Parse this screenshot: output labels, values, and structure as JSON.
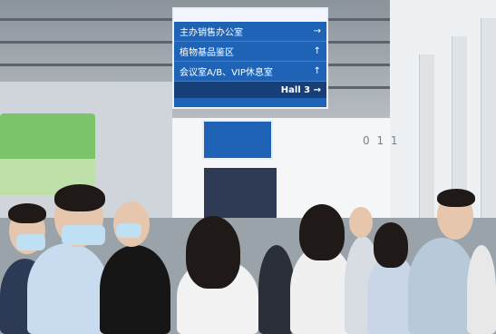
{
  "sign": {
    "header_left": "",
    "header_right": "",
    "rows": [
      {
        "text": "主办销售办公室",
        "arrow": "→"
      },
      {
        "text": "植物基品鉴区",
        "arrow": "↑"
      },
      {
        "text": "会议室A/B、VIP休息室",
        "arrow": "↑"
      }
    ],
    "footer_left": "",
    "footer_right": "Hall 3 →"
  },
  "panel_text": "0 1 1",
  "colors": {
    "sign_blue": "#1e63b5",
    "booth_green": "#7cc46a"
  }
}
